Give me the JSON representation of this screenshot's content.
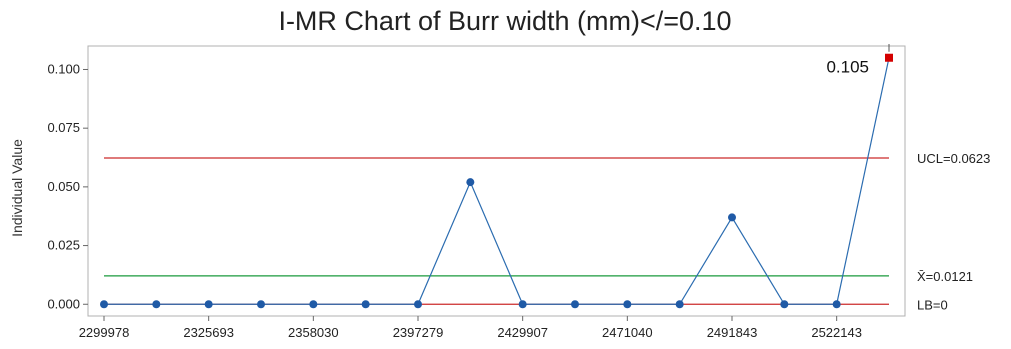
{
  "chart_data": {
    "type": "line",
    "title": "I-MR Chart of Burr width (mm)</=0.10",
    "ylabel": "Individual Value",
    "xlabel": "",
    "x_tick_labels": [
      "2299978",
      "2325693",
      "2358030",
      "2397279",
      "2429907",
      "2471040",
      "2491843",
      "2522143"
    ],
    "yticks": [
      "0.000",
      "0.025",
      "0.050",
      "0.075",
      "0.100"
    ],
    "ylim": [
      -0.005,
      0.11
    ],
    "grid": false,
    "series": [
      {
        "values": [
          0,
          0,
          0,
          0,
          0,
          0,
          0,
          0.052,
          0,
          0,
          0,
          0,
          0.037,
          0,
          0,
          0.105
        ]
      }
    ],
    "out_of_control_points": [
      15
    ],
    "annotations": [
      {
        "text": "0.105",
        "point_index": 15
      }
    ],
    "reference_lines": [
      {
        "label": "UCL=0.0623",
        "value": 0.0623,
        "color": "#cc2b2b"
      },
      {
        "label": "X̄=0.0121",
        "value": 0.0121,
        "color": "#1a9a3c"
      },
      {
        "label": "LB=0",
        "value": 0,
        "color": "#cc2b2b"
      }
    ],
    "colors": {
      "line": "#2b6cb0",
      "marker": "#1f5aa6",
      "alert": "#d40000"
    }
  }
}
